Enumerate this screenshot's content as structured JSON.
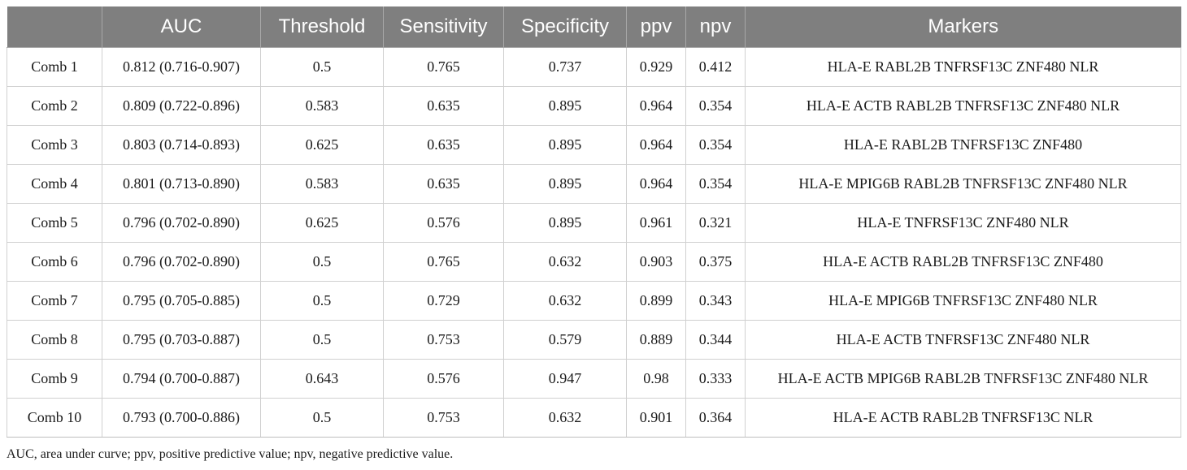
{
  "table": {
    "headers": [
      "",
      "AUC",
      "Threshold",
      "Sensitivity",
      "Specificity",
      "ppv",
      "npv",
      "Markers"
    ],
    "rows": [
      [
        "Comb 1",
        "0.812 (0.716-0.907)",
        "0.5",
        "0.765",
        "0.737",
        "0.929",
        "0.412",
        "HLA-E RABL2B TNFRSF13C ZNF480 NLR"
      ],
      [
        "Comb 2",
        "0.809 (0.722-0.896)",
        "0.583",
        "0.635",
        "0.895",
        "0.964",
        "0.354",
        "HLA-E ACTB RABL2B TNFRSF13C ZNF480 NLR"
      ],
      [
        "Comb 3",
        "0.803 (0.714-0.893)",
        "0.625",
        "0.635",
        "0.895",
        "0.964",
        "0.354",
        "HLA-E RABL2B TNFRSF13C ZNF480"
      ],
      [
        "Comb 4",
        "0.801 (0.713-0.890)",
        "0.583",
        "0.635",
        "0.895",
        "0.964",
        "0.354",
        "HLA-E MPIG6B RABL2B TNFRSF13C ZNF480 NLR"
      ],
      [
        "Comb 5",
        "0.796 (0.702-0.890)",
        "0.625",
        "0.576",
        "0.895",
        "0.961",
        "0.321",
        "HLA-E TNFRSF13C ZNF480 NLR"
      ],
      [
        "Comb 6",
        "0.796 (0.702-0.890)",
        "0.5",
        "0.765",
        "0.632",
        "0.903",
        "0.375",
        "HLA-E ACTB RABL2B TNFRSF13C ZNF480"
      ],
      [
        "Comb 7",
        "0.795 (0.705-0.885)",
        "0.5",
        "0.729",
        "0.632",
        "0.899",
        "0.343",
        "HLA-E MPIG6B TNFRSF13C ZNF480 NLR"
      ],
      [
        "Comb 8",
        "0.795 (0.703-0.887)",
        "0.5",
        "0.753",
        "0.579",
        "0.889",
        "0.344",
        "HLA-E ACTB TNFRSF13C ZNF480 NLR"
      ],
      [
        "Comb 9",
        "0.794 (0.700-0.887)",
        "0.643",
        "0.576",
        "0.947",
        "0.98",
        "0.333",
        "HLA-E ACTB MPIG6B RABL2B TNFRSF13C ZNF480 NLR"
      ],
      [
        "Comb 10",
        "0.793 (0.700-0.886)",
        "0.5",
        "0.753",
        "0.632",
        "0.901",
        "0.364",
        "HLA-E ACTB RABL2B TNFRSF13C NLR"
      ]
    ]
  },
  "footnote": "AUC, area under curve; ppv, positive predictive value; npv, negative predictive value."
}
